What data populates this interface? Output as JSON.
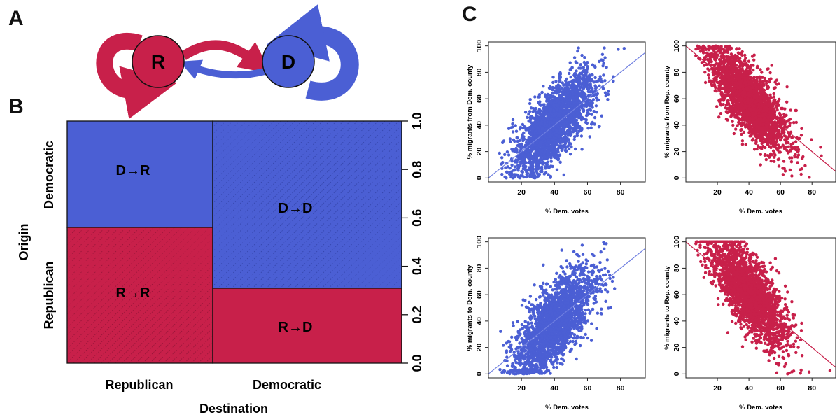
{
  "panels": {
    "a_letter": "A",
    "b_letter": "B",
    "c_letter": "C"
  },
  "flow_diagram": {
    "nodes": [
      {
        "id": "R",
        "label": "R",
        "color": "#c8204a"
      },
      {
        "id": "D",
        "label": "D",
        "color": "#4b5fd4"
      }
    ]
  },
  "colors": {
    "republican": "#c8204a",
    "democratic": "#4b5fd4",
    "reference_line_dem": "#6f7fe0",
    "reference_line_rep": "#c8204a"
  },
  "chart_data": [
    {
      "type": "mosaic",
      "xlabel": "Destination",
      "ylabel": "Origin",
      "x_categories": [
        "Republican",
        "Democratic"
      ],
      "y_categories": [
        "Democratic",
        "Republican"
      ],
      "x_widths": [
        0.435,
        0.565
      ],
      "right_ticks": [
        "0.0",
        "0.2",
        "0.4",
        "0.6",
        "0.8",
        "1.0"
      ],
      "ylim": [
        0,
        1
      ],
      "cells": [
        {
          "label": "D→R",
          "origin": "Democratic",
          "destination": "Republican",
          "y_from": 0.56,
          "y_to": 1.0,
          "color": "#4b5fd4",
          "hatch": false
        },
        {
          "label": "R→R",
          "origin": "Republican",
          "destination": "Republican",
          "y_from": 0.0,
          "y_to": 0.56,
          "color": "#c8204a",
          "hatch": true
        },
        {
          "label": "D→D",
          "origin": "Democratic",
          "destination": "Democratic",
          "y_from": 0.31,
          "y_to": 1.0,
          "color": "#4b5fd4",
          "hatch": true
        },
        {
          "label": "R→D",
          "origin": "Republican",
          "destination": "Democratic",
          "y_from": 0.0,
          "y_to": 0.31,
          "color": "#c8204a",
          "hatch": false
        }
      ]
    },
    {
      "type": "scatter",
      "xlabel": "% Dem. votes",
      "ylabel": "% migrants from Dem. county",
      "xlim": [
        0,
        95
      ],
      "ylim": [
        -3,
        103
      ],
      "xticks": [
        "20",
        "40",
        "60",
        "80"
      ],
      "yticks": [
        "0",
        "20",
        "40",
        "60",
        "80",
        "100"
      ],
      "color": "#4b5fd4",
      "reference_line": {
        "from": [
          0,
          0
        ],
        "to": [
          100,
          100
        ]
      },
      "trend": {
        "slope": 1.15,
        "intercept": -5,
        "noise": 13,
        "x_mean": 40,
        "x_sd": 12,
        "n": 2400,
        "ceiling_pile": false
      }
    },
    {
      "type": "scatter",
      "xlabel": "% Dem. votes",
      "ylabel": "% migrants from Rep. county",
      "xlim": [
        0,
        95
      ],
      "ylim": [
        -3,
        103
      ],
      "xticks": [
        "20",
        "40",
        "60",
        "80"
      ],
      "yticks": [
        "0",
        "20",
        "40",
        "60",
        "80",
        "100"
      ],
      "color": "#c8204a",
      "reference_line": {
        "from": [
          0,
          100
        ],
        "to": [
          100,
          0
        ]
      },
      "trend": {
        "slope": -1.15,
        "intercept": 105,
        "noise": 13,
        "x_mean": 40,
        "x_sd": 12,
        "n": 2400,
        "ceiling_pile": false
      }
    },
    {
      "type": "scatter",
      "xlabel": "% Dem. votes",
      "ylabel": "% migrants to Dem. county",
      "xlim": [
        0,
        95
      ],
      "ylim": [
        -3,
        103
      ],
      "xticks": [
        "20",
        "40",
        "60",
        "80"
      ],
      "yticks": [
        "0",
        "20",
        "40",
        "60",
        "80",
        "100"
      ],
      "color": "#4b5fd4",
      "reference_line": {
        "from": [
          0,
          0
        ],
        "to": [
          100,
          100
        ]
      },
      "trend": {
        "slope": 1.25,
        "intercept": -12,
        "noise": 14,
        "x_mean": 40,
        "x_sd": 12,
        "n": 2400,
        "ceiling_pile": false
      }
    },
    {
      "type": "scatter",
      "xlabel": "% Dem. votes",
      "ylabel": "% migrants to Rep. county",
      "xlim": [
        0,
        95
      ],
      "ylim": [
        -3,
        103
      ],
      "xticks": [
        "20",
        "40",
        "60",
        "80"
      ],
      "yticks": [
        "0",
        "20",
        "40",
        "60",
        "80",
        "100"
      ],
      "color": "#c8204a",
      "reference_line": {
        "from": [
          0,
          100
        ],
        "to": [
          100,
          0
        ]
      },
      "trend": {
        "slope": -1.25,
        "intercept": 112,
        "noise": 14,
        "x_mean": 40,
        "x_sd": 12,
        "n": 2400,
        "ceiling_pile": true
      }
    }
  ]
}
